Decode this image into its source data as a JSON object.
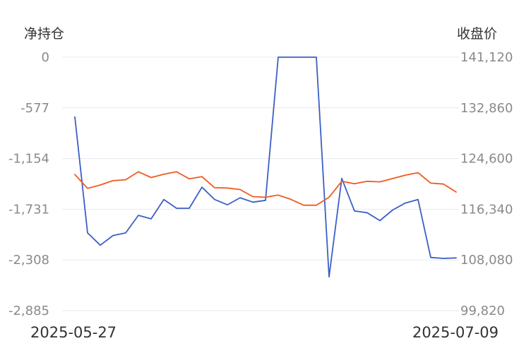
{
  "chart_data": {
    "type": "line",
    "left_axis_title": "净持仓",
    "right_axis_title": "收盘价",
    "left_ticks": [
      "0",
      "-577",
      "-1,154",
      "-1,731",
      "-2,308",
      "-2,885"
    ],
    "right_ticks": [
      "141,120",
      "132,860",
      "124,600",
      "116,340",
      "108,080",
      "99,820"
    ],
    "ylim_left": [
      -2885,
      0
    ],
    "ylim_right": [
      99820,
      141120
    ],
    "grid": true,
    "x_start_label": "2025-05-27",
    "x_end_label": "2025-07-09",
    "series": [
      {
        "axis": "left",
        "color": "#3b5fc6",
        "values": [
          -680,
          -2000,
          -2140,
          -2030,
          -2000,
          -1800,
          -1840,
          -1620,
          -1720,
          -1720,
          -1480,
          -1620,
          -1680,
          -1600,
          -1650,
          -1630,
          0,
          0,
          0,
          0,
          -2500,
          -1380,
          -1750,
          -1770,
          -1860,
          -1740,
          -1660,
          -1620,
          -2280,
          -2290,
          -2285
        ]
      },
      {
        "axis": "right",
        "color": "#f05a1e",
        "values": [
          122000,
          119750,
          120300,
          121000,
          121150,
          122450,
          121500,
          122050,
          122450,
          121300,
          121650,
          119850,
          119800,
          119550,
          118400,
          118300,
          118650,
          117950,
          117000,
          117000,
          118300,
          120900,
          120500,
          120900,
          120800,
          121350,
          121900,
          122300,
          120600,
          120450,
          119150
        ]
      }
    ]
  }
}
